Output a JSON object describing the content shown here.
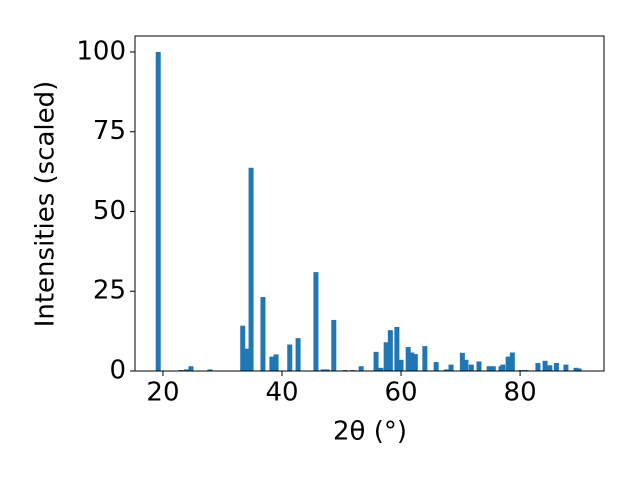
{
  "chart_data": {
    "type": "bar",
    "xlabel": "2θ (°)",
    "ylabel": "Intensities (scaled)",
    "x": [
      19.2,
      23.0,
      23.9,
      24.7,
      27.9,
      33.4,
      34.0,
      34.8,
      36.8,
      38.3,
      39.0,
      41.3,
      42.7,
      45.7,
      46.9,
      47.6,
      48.7,
      50.6,
      51.9,
      53.3,
      55.8,
      56.6,
      57.5,
      58.2,
      59.3,
      60.0,
      61.2,
      61.8,
      62.4,
      64.0,
      65.9,
      67.6,
      68.4,
      70.3,
      70.9,
      71.8,
      73.1,
      74.8,
      75.5,
      76.8,
      77.1,
      78.0,
      78.7,
      80.2,
      81.0,
      83.0,
      84.2,
      85.0,
      86.1,
      87.7,
      89.4,
      89.9
    ],
    "values": [
      100,
      0.3,
      0.5,
      1.5,
      0.5,
      14.2,
      7,
      63.7,
      23.2,
      4.5,
      5.2,
      8.3,
      10.3,
      31,
      0.5,
      0.5,
      16,
      0.3,
      0.3,
      1.5,
      6,
      1,
      9,
      12.8,
      13.8,
      3.5,
      7.5,
      5.8,
      5.3,
      7.8,
      2.8,
      0.5,
      2,
      5.7,
      3.5,
      2,
      3,
      1.5,
      1.5,
      1.5,
      2,
      4.5,
      5.8,
      0.3,
      0.3,
      2.5,
      3.2,
      1.8,
      2.5,
      2,
      1,
      0.8
    ],
    "color": "#1f77b4",
    "xlim": [
      15.3,
      94.1
    ],
    "ylim": [
      0,
      105
    ],
    "xticks": [
      20,
      40,
      60,
      80
    ],
    "yticks": [
      0,
      25,
      50,
      75,
      100
    ]
  }
}
